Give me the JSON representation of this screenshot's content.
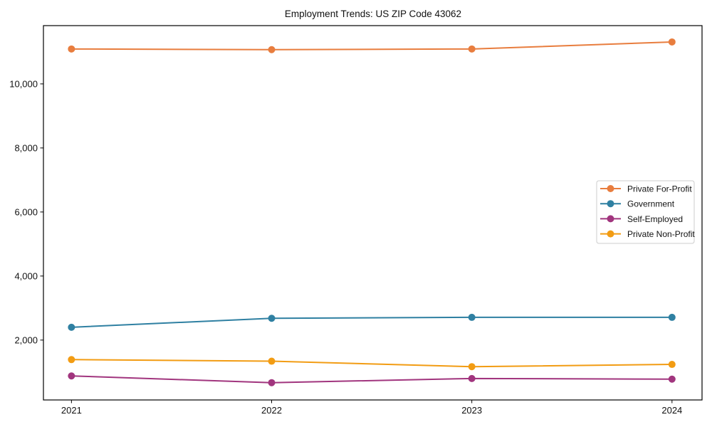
{
  "figure": {
    "title": "Employment Trends: US ZIP Code 43062"
  },
  "chart_data": {
    "type": "line",
    "title": "Employment Trends: US ZIP Code 43062",
    "xlabel": "",
    "ylabel": "",
    "x": [
      2021,
      2022,
      2023,
      2024
    ],
    "x_tick_labels": [
      "2021",
      "2022",
      "2023",
      "2024"
    ],
    "y_ticks": [
      2000,
      4000,
      6000,
      8000,
      10000
    ],
    "y_tick_labels": [
      "2,000",
      "4,000",
      "6,000",
      "8,000",
      "10,000"
    ],
    "xlim": [
      2020.86,
      2024.15
    ],
    "ylim": [
      130,
      11820
    ],
    "grid": false,
    "legend_position": "center right",
    "marker": "circle",
    "series": [
      {
        "name": "Private For-Profit",
        "color": "#e87d3e",
        "values": [
          11090,
          11070,
          11090,
          11310
        ]
      },
      {
        "name": "Government",
        "color": "#2f80a2",
        "values": [
          2400,
          2680,
          2710,
          2710
        ]
      },
      {
        "name": "Self-Employed",
        "color": "#a1357e",
        "values": [
          880,
          670,
          800,
          780
        ]
      },
      {
        "name": "Private Non-Profit",
        "color": "#f29c13",
        "values": [
          1390,
          1340,
          1170,
          1240
        ]
      }
    ]
  }
}
